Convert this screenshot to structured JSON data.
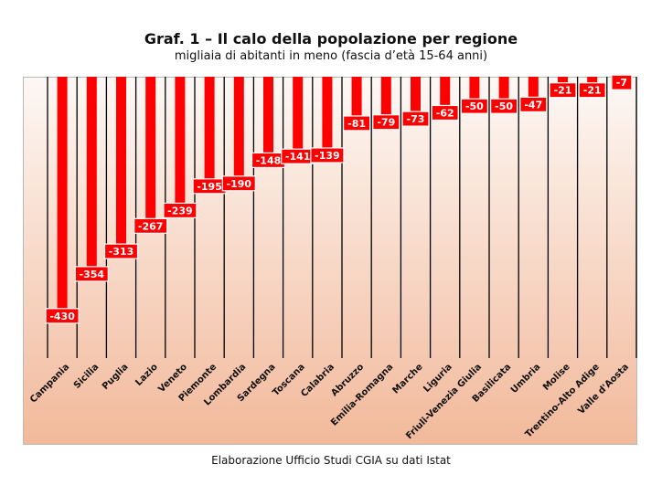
{
  "title": "Graf. 1 – Il calo della popolazione per regione",
  "subtitle": "migliaia di abitanti in meno (fascia d’età 15-64 anni)",
  "source": "Elaborazione Ufficio Studi CGIA su dati Istat",
  "colors": {
    "bar": "#ff0000",
    "label_box": "#ff0000",
    "label_text": "#ffffff",
    "gridline": "#000000",
    "background_top": "#fdf8f5",
    "background_bottom": "#f2b99b"
  },
  "chart_data": {
    "type": "bar",
    "orientation": "vertical-inverted",
    "title": "Graf. 1 – Il calo della popolazione per regione",
    "subtitle": "migliaia di abitanti in meno (fascia d’età 15-64 anni)",
    "categories": [
      "Campania",
      "Sicilia",
      "Puglia",
      "Lazio",
      "Veneto",
      "Piemonte",
      "Lombardia",
      "Sardegna",
      "Toscana",
      "Calabria",
      "Abruzzo",
      "Emilia-Romagna",
      "Marche",
      "Liguria",
      "Friuli-Venezia Giulia",
      "Basilicata",
      "Umbria",
      "Molise",
      "Trentino-Alto Adige",
      "Valle d'Aosta"
    ],
    "values": [
      -430,
      -354,
      -313,
      -267,
      -239,
      -195,
      -190,
      -148,
      -141,
      -139,
      -81,
      -79,
      -73,
      -62,
      -50,
      -50,
      -47,
      -21,
      -21,
      -7
    ],
    "data_labels": [
      "-430",
      "-354",
      "-313",
      "-267",
      "-239",
      "-195",
      "-190",
      "-148",
      "-141",
      "-139",
      "-81",
      "-79",
      "-73",
      "-62",
      "-50",
      "-50",
      "-47",
      "-21",
      "-21",
      "-7"
    ],
    "ylim": [
      -470,
      0
    ],
    "grid": "vertical lines between categories",
    "legend": "none",
    "xlabel": "",
    "ylabel": ""
  }
}
